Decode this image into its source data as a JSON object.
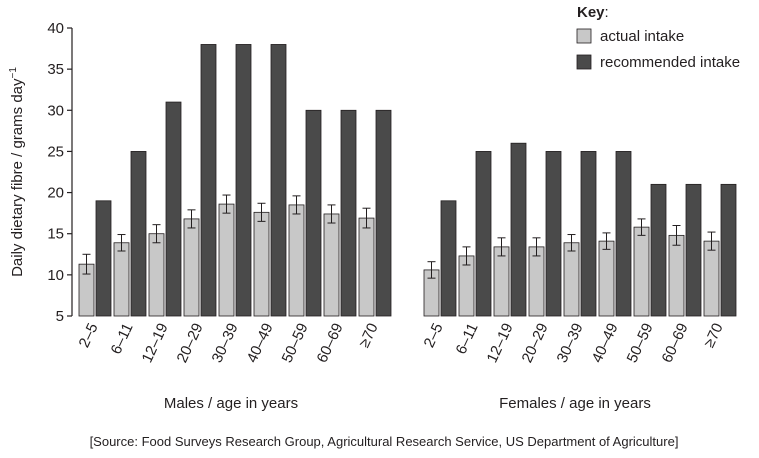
{
  "chart_data": {
    "type": "bar",
    "ylabel": "Daily dietary fibre / grams day",
    "ylabel_superscript": "−1",
    "ylim": [
      5,
      40
    ],
    "yticks": [
      5,
      10,
      15,
      20,
      25,
      30,
      35,
      40
    ],
    "legend": {
      "title": "Key",
      "title_suffix": ":",
      "entries": [
        {
          "label": "actual intake",
          "color": "#c8c8c8"
        },
        {
          "label": "recommended intake",
          "color": "#4a4a4a"
        }
      ]
    },
    "groups": [
      {
        "xlabel": "Males / age in years",
        "categories": [
          "2–5",
          "6–11",
          "12–19",
          "20–29",
          "30–39",
          "40–49",
          "50–59",
          "60–69",
          "≥70"
        ],
        "actual": [
          11.3,
          13.9,
          15.0,
          16.8,
          18.6,
          17.6,
          18.5,
          17.4,
          16.9
        ],
        "actual_error": [
          1.2,
          1.0,
          1.1,
          1.1,
          1.1,
          1.1,
          1.1,
          1.1,
          1.2
        ],
        "recommended": [
          19,
          25,
          31,
          38,
          38,
          38,
          30,
          30,
          30
        ]
      },
      {
        "xlabel": "Females / age in years",
        "categories": [
          "2–5",
          "6–11",
          "12–19",
          "20–29",
          "30–39",
          "40–49",
          "50–59",
          "60–69",
          "≥70"
        ],
        "actual": [
          10.6,
          12.3,
          13.4,
          13.4,
          13.9,
          14.1,
          15.8,
          14.8,
          14.1
        ],
        "actual_error": [
          1.0,
          1.1,
          1.1,
          1.1,
          1.0,
          1.0,
          1.0,
          1.2,
          1.1
        ],
        "recommended": [
          19,
          25,
          26,
          25,
          25,
          25,
          21,
          21,
          21
        ]
      }
    ],
    "source": "[Source: Food Surveys Research Group, Agricultural Research Service, US Department of Agriculture]"
  }
}
